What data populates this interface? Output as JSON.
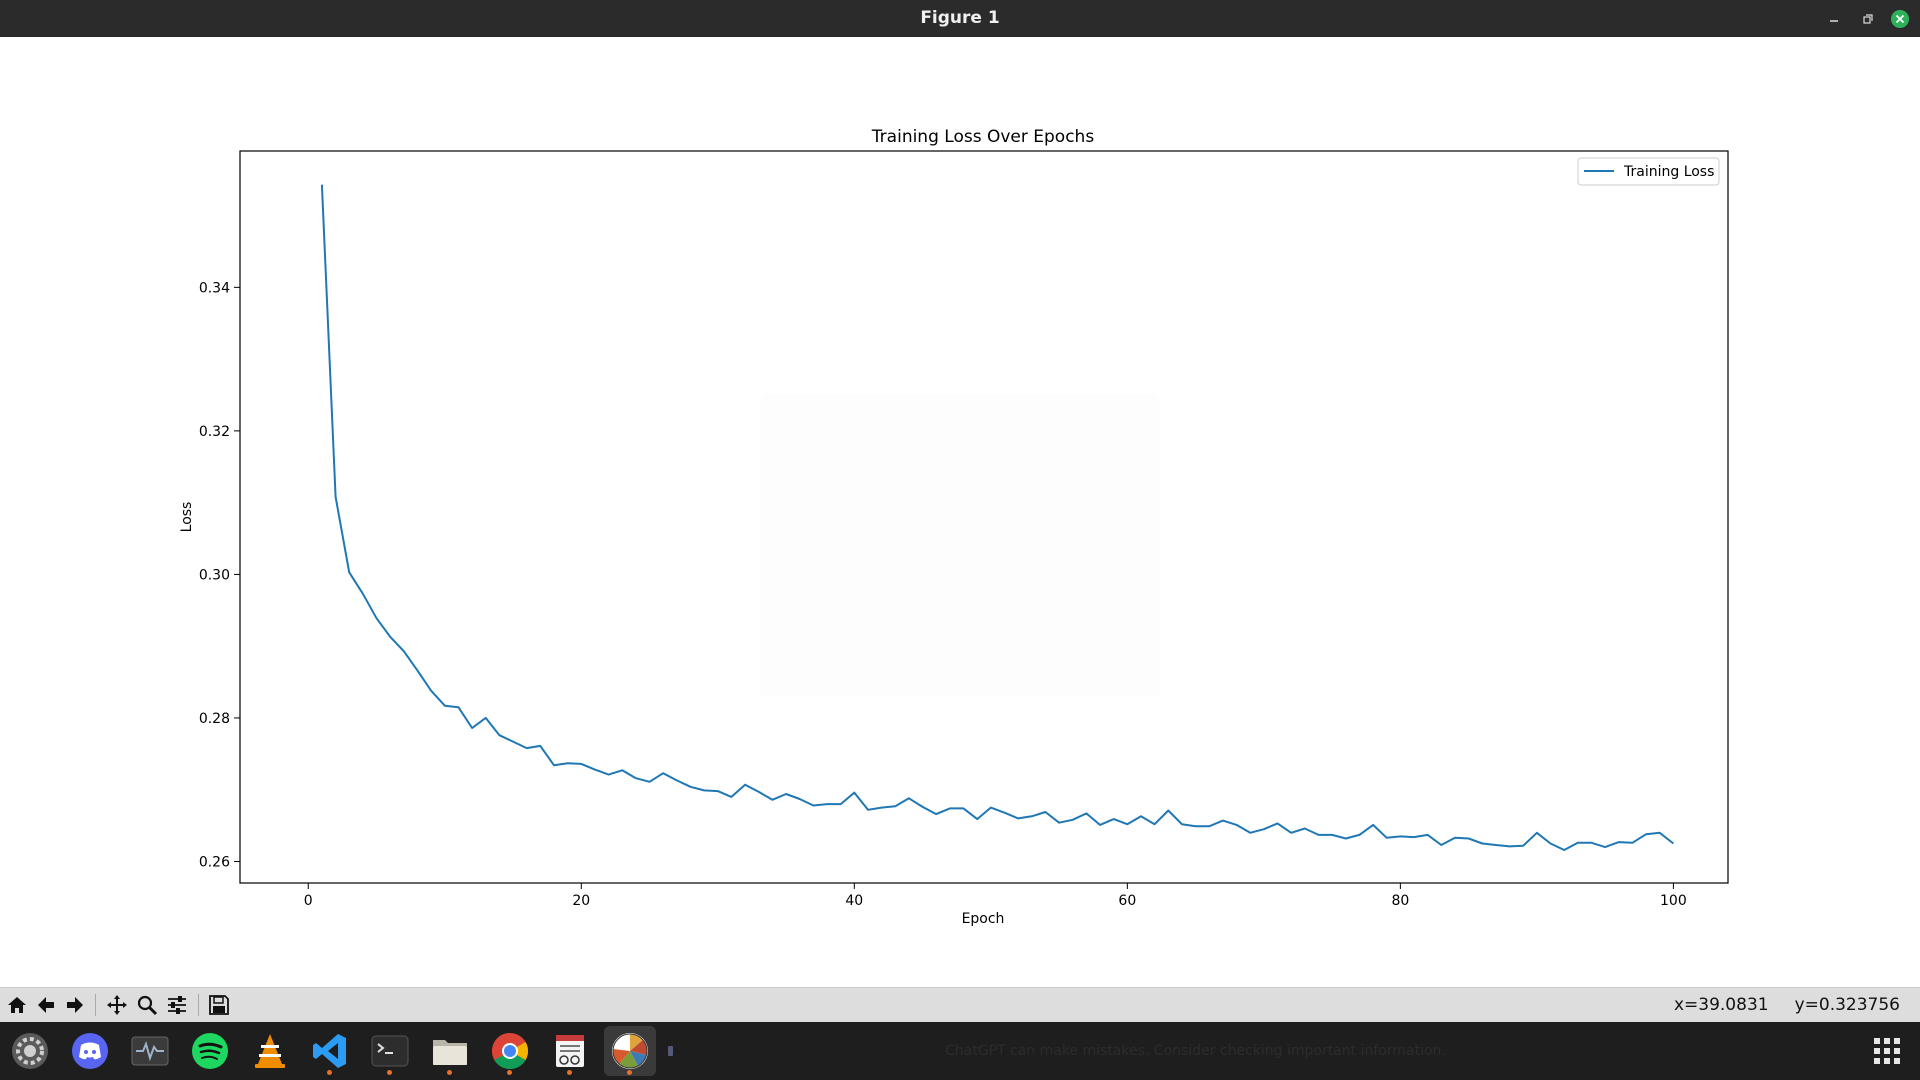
{
  "window": {
    "title": "Figure 1"
  },
  "toolbar": {
    "buttons": [
      "home-icon",
      "back-arrow-icon",
      "forward-arrow-icon",
      "pan-icon",
      "zoom-icon",
      "configure-subplots-icon",
      "save-icon"
    ],
    "coord_x": "x=39.0831",
    "coord_y": "y=0.323756"
  },
  "taskbar": {
    "apps": [
      "settings",
      "discord",
      "system-monitor",
      "spotify",
      "vlc",
      "vscode",
      "terminal",
      "files",
      "chrome",
      "text-editor",
      "matplotlib-figure"
    ],
    "notification": "ChatGPT can make mistakes. Consider checking important information."
  },
  "chart_data": {
    "type": "line",
    "title": "Training Loss Over Epochs",
    "xlabel": "Epoch",
    "ylabel": "Loss",
    "xlim": [
      -5,
      104
    ],
    "ylim": [
      0.257,
      0.359
    ],
    "xticks": [
      0,
      20,
      40,
      60,
      80,
      100
    ],
    "yticks": [
      0.26,
      0.28,
      0.3,
      0.32,
      0.34
    ],
    "xtick_labels": [
      "0",
      "20",
      "40",
      "60",
      "80",
      "100"
    ],
    "ytick_labels": [
      "0.26",
      "0.28",
      "0.30",
      "0.32",
      "0.34"
    ],
    "legend_position": "top-right",
    "grid": false,
    "series": [
      {
        "name": "Training Loss",
        "color": "#1f77b4",
        "x": [
          1,
          2,
          3,
          4,
          5,
          6,
          7,
          8,
          9,
          10,
          11,
          12,
          13,
          14,
          15,
          16,
          17,
          18,
          19,
          20,
          21,
          22,
          23,
          24,
          25,
          26,
          27,
          28,
          29,
          30,
          31,
          32,
          33,
          34,
          35,
          36,
          37,
          38,
          39,
          40,
          41,
          42,
          43,
          44,
          45,
          46,
          47,
          48,
          49,
          50,
          51,
          52,
          53,
          54,
          55,
          56,
          57,
          58,
          59,
          60,
          61,
          62,
          63,
          64,
          65,
          66,
          67,
          68,
          69,
          70,
          71,
          72,
          73,
          74,
          75,
          76,
          77,
          78,
          79,
          80,
          81,
          82,
          83,
          84,
          85,
          86,
          87,
          88,
          89,
          90,
          91,
          92,
          93,
          94,
          95,
          96,
          97,
          98,
          99,
          100
        ],
        "y": [
          0.3543,
          0.3108,
          0.3003,
          0.2973,
          0.2939,
          0.2913,
          0.2893,
          0.2866,
          0.2838,
          0.2817,
          0.2815,
          0.2786,
          0.28,
          0.2776,
          0.2767,
          0.2758,
          0.2761,
          0.2734,
          0.2737,
          0.2736,
          0.2728,
          0.2721,
          0.2727,
          0.2716,
          0.2711,
          0.2723,
          0.2713,
          0.2704,
          0.2699,
          0.2698,
          0.269,
          0.2707,
          0.2697,
          0.2686,
          0.2694,
          0.2687,
          0.2678,
          0.268,
          0.268,
          0.2696,
          0.2672,
          0.2675,
          0.2677,
          0.2688,
          0.2676,
          0.2666,
          0.2674,
          0.2674,
          0.2659,
          0.2675,
          0.2668,
          0.266,
          0.2663,
          0.2669,
          0.2654,
          0.2658,
          0.2667,
          0.2651,
          0.2659,
          0.2652,
          0.2663,
          0.2652,
          0.2671,
          0.2652,
          0.2649,
          0.2649,
          0.2657,
          0.2651,
          0.264,
          0.2645,
          0.2653,
          0.264,
          0.2646,
          0.2637,
          0.2637,
          0.2632,
          0.2637,
          0.2651,
          0.2633,
          0.2635,
          0.2634,
          0.2637,
          0.2623,
          0.2633,
          0.2632,
          0.2625,
          0.2623,
          0.2621,
          0.2622,
          0.264,
          0.2625,
          0.2616,
          0.2626,
          0.2626,
          0.262,
          0.2627,
          0.2626,
          0.2638,
          0.264,
          0.2625
        ]
      }
    ]
  }
}
